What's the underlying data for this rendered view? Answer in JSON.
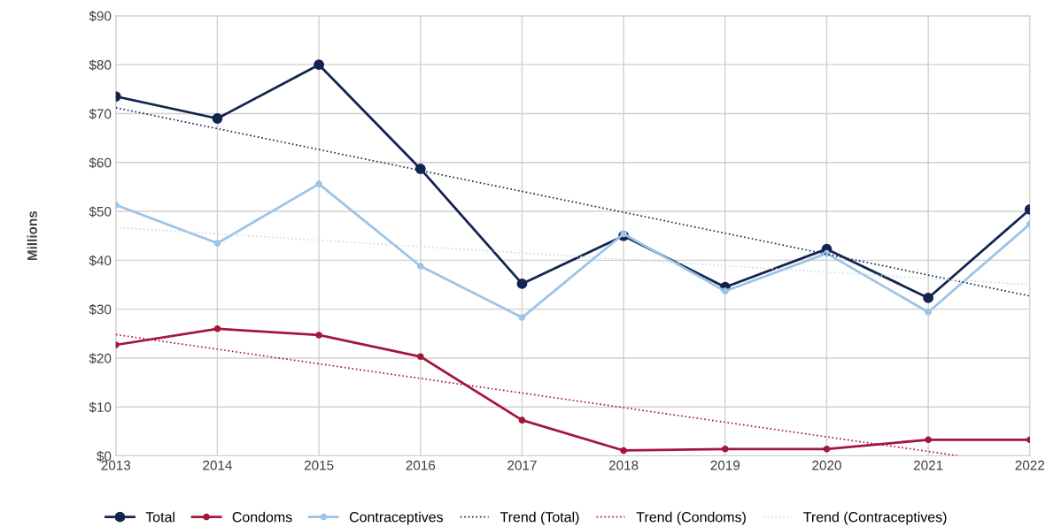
{
  "chart_data": {
    "type": "line",
    "ylabel": "Millions",
    "x": [
      2013,
      2014,
      2015,
      2016,
      2017,
      2018,
      2019,
      2020,
      2021,
      2022
    ],
    "xlim": [
      2013,
      2022
    ],
    "xticks": [
      2013,
      2014,
      2015,
      2016,
      2017,
      2018,
      2019,
      2020,
      2021,
      2022
    ],
    "ylim": [
      0,
      90
    ],
    "yticks": [
      {
        "value": 0,
        "label": "$0"
      },
      {
        "value": 10,
        "label": "$10"
      },
      {
        "value": 20,
        "label": "$20"
      },
      {
        "value": 30,
        "label": "$30"
      },
      {
        "value": 40,
        "label": "$40"
      },
      {
        "value": 50,
        "label": "$50"
      },
      {
        "value": 60,
        "label": "$60"
      },
      {
        "value": 70,
        "label": "$70"
      },
      {
        "value": 80,
        "label": "$80"
      },
      {
        "value": 90,
        "label": "$90"
      }
    ],
    "grid": true,
    "legend": "bottom",
    "marker": "circle",
    "line_style": "solid",
    "series": [
      {
        "name": "Total",
        "color": "#13244f",
        "values": [
          73.5,
          69.0,
          80.0,
          58.7,
          35.2,
          45.0,
          34.5,
          42.3,
          32.3,
          50.4
        ]
      },
      {
        "name": "Condoms",
        "color": "#a3173a",
        "values": [
          22.7,
          26.0,
          24.7,
          20.3,
          7.3,
          1.1,
          1.4,
          1.4,
          3.3,
          3.3
        ]
      },
      {
        "name": "Contraceptives",
        "color": "#9dc3e6",
        "values": [
          51.3,
          43.5,
          55.6,
          38.8,
          28.3,
          45.4,
          33.7,
          41.4,
          29.4,
          47.4
        ]
      },
      {
        "name": "Trend (Total)",
        "color": "#13244f",
        "x": [
          2013,
          2022
        ],
        "values": [
          71.2,
          32.7
        ],
        "marker": "none",
        "line_style": "dotted"
      },
      {
        "name": "Trend (Condoms)",
        "color": "#a3173a",
        "x": [
          2013,
          2021.3
        ],
        "values": [
          24.8,
          0
        ],
        "marker": "none",
        "line_style": "dotted"
      },
      {
        "name": "Trend (Contraceptives)",
        "color": "#c9dcef",
        "x": [
          2013,
          2022
        ],
        "values": [
          46.7,
          35.0
        ],
        "marker": "none",
        "line_style": "dotted"
      }
    ]
  }
}
